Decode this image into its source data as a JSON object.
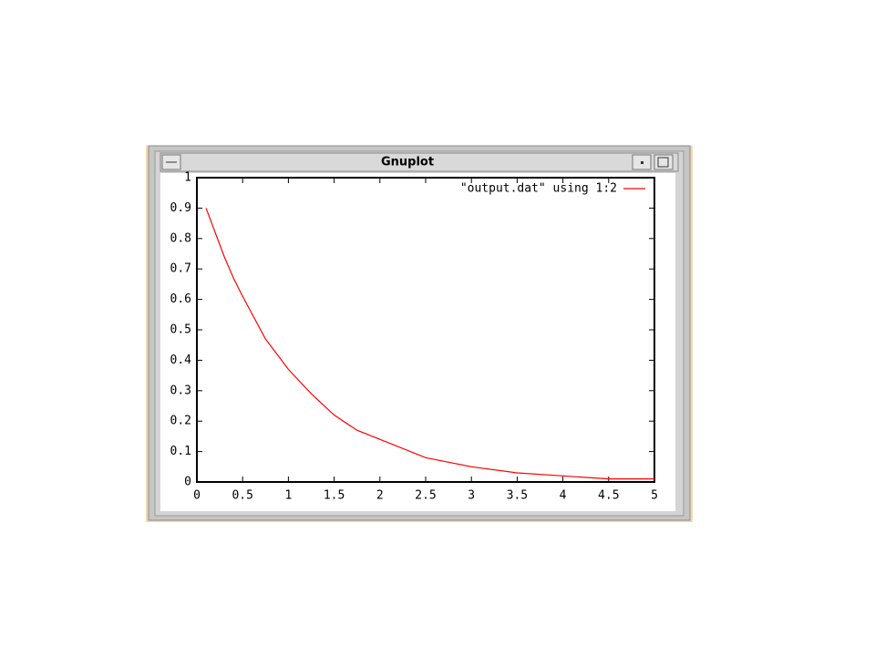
{
  "window": {
    "title": "Gnuplot"
  },
  "chart_data": {
    "type": "line",
    "x": [
      0.1,
      0.2,
      0.3,
      0.4,
      0.5,
      0.75,
      1,
      1.25,
      1.5,
      1.75,
      2,
      2.5,
      3,
      3.5,
      4,
      4.5,
      5
    ],
    "series": [
      {
        "name": "\"output.dat\" using 1:2",
        "color": "#ff0000",
        "values": [
          0.9,
          0.82,
          0.74,
          0.67,
          0.61,
          0.47,
          0.37,
          0.29,
          0.22,
          0.17,
          0.14,
          0.08,
          0.05,
          0.03,
          0.02,
          0.01,
          0.01
        ]
      }
    ],
    "xlim": [
      0,
      5
    ],
    "ylim": [
      0,
      1
    ],
    "xticks": [
      0,
      0.5,
      1,
      1.5,
      2,
      2.5,
      3,
      3.5,
      4,
      4.5,
      5
    ],
    "yticks": [
      0,
      0.1,
      0.2,
      0.3,
      0.4,
      0.5,
      0.6,
      0.7,
      0.8,
      0.9,
      1
    ],
    "legend": "top-right",
    "mirror_ticks": true
  }
}
